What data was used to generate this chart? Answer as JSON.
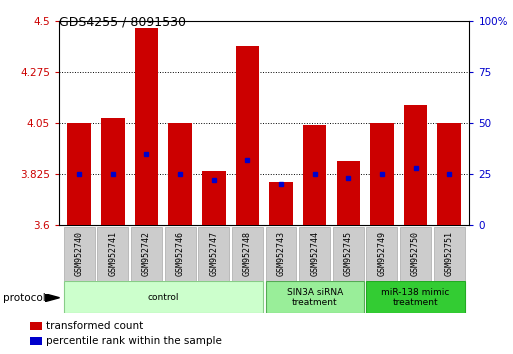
{
  "title": "GDS4255 / 8091530",
  "samples": [
    "GSM952740",
    "GSM952741",
    "GSM952742",
    "GSM952746",
    "GSM952747",
    "GSM952748",
    "GSM952743",
    "GSM952744",
    "GSM952745",
    "GSM952749",
    "GSM952750",
    "GSM952751"
  ],
  "transformed_counts": [
    4.05,
    4.07,
    4.47,
    4.05,
    3.84,
    4.39,
    3.79,
    4.04,
    3.88,
    4.05,
    4.13,
    4.05
  ],
  "percentile_ranks": [
    25,
    25,
    35,
    25,
    22,
    32,
    20,
    25,
    23,
    25,
    28,
    25
  ],
  "ylim_left": [
    3.6,
    4.5
  ],
  "ylim_right": [
    0,
    100
  ],
  "yticks_left": [
    3.6,
    3.825,
    4.05,
    4.275,
    4.5
  ],
  "yticks_right": [
    0,
    25,
    50,
    75,
    100
  ],
  "ytick_labels_left": [
    "3.6",
    "3.825",
    "4.05",
    "4.275",
    "4.5"
  ],
  "ytick_labels_right": [
    "0",
    "25",
    "50",
    "75",
    "100%"
  ],
  "bar_color": "#cc0000",
  "dot_color": "#0000cc",
  "groups": [
    {
      "label": "control",
      "start": 0,
      "end": 5,
      "color": "#ccffcc",
      "border": "#88cc88"
    },
    {
      "label": "SIN3A siRNA\ntreatment",
      "start": 6,
      "end": 8,
      "color": "#99ee99",
      "border": "#55aa55"
    },
    {
      "label": "miR-138 mimic\ntreatment",
      "start": 9,
      "end": 11,
      "color": "#33cc33",
      "border": "#22aa22"
    }
  ],
  "protocol_label": "protocol",
  "legend_items": [
    {
      "color": "#cc0000",
      "label": "transformed count"
    },
    {
      "color": "#0000cc",
      "label": "percentile rank within the sample"
    }
  ],
  "grid_color": "#000000",
  "label_box_color": "#cccccc",
  "label_box_edge": "#aaaaaa"
}
